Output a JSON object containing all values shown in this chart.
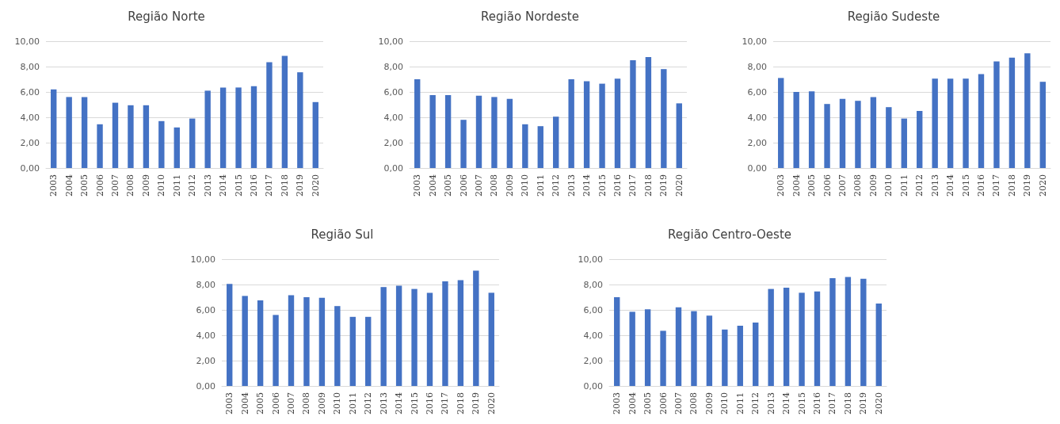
{
  "chart_data": [
    {
      "type": "bar",
      "title": "Região Norte",
      "categories": [
        "2003",
        "2004",
        "2005",
        "2006",
        "2007",
        "2008",
        "2009",
        "2010",
        "2011",
        "2012",
        "2013",
        "2014",
        "2015",
        "2016",
        "2017",
        "2018",
        "2019",
        "2020"
      ],
      "color": "#4472c4",
      "values": [
        6.2,
        5.6,
        5.6,
        3.45,
        5.15,
        4.95,
        4.95,
        3.7,
        3.2,
        3.9,
        6.1,
        6.35,
        6.35,
        6.45,
        8.35,
        8.85,
        7.55,
        5.2
      ],
      "ylim": [
        0,
        10
      ],
      "yticks": [
        {
          "value": 0,
          "label": "0,00"
        },
        {
          "value": 2,
          "label": "2,00"
        },
        {
          "value": 4,
          "label": "4,00"
        },
        {
          "value": 6,
          "label": "6,00"
        },
        {
          "value": 8,
          "label": "8,00"
        },
        {
          "value": 10,
          "label": "10,00"
        }
      ],
      "grid": "y"
    },
    {
      "type": "bar",
      "title": "Região Nordeste",
      "categories": [
        "2003",
        "2004",
        "2005",
        "2006",
        "2007",
        "2008",
        "2009",
        "2010",
        "2011",
        "2012",
        "2013",
        "2014",
        "2015",
        "2016",
        "2017",
        "2018",
        "2019",
        "2020"
      ],
      "color": "#4472c4",
      "values": [
        7.0,
        5.75,
        5.75,
        3.8,
        5.7,
        5.6,
        5.45,
        3.45,
        3.3,
        4.05,
        7.0,
        6.85,
        6.65,
        7.05,
        8.5,
        8.75,
        7.8,
        5.1
      ],
      "ylim": [
        0,
        10
      ],
      "yticks": [
        {
          "value": 0,
          "label": "0,00"
        },
        {
          "value": 2,
          "label": "2,00"
        },
        {
          "value": 4,
          "label": "4,00"
        },
        {
          "value": 6,
          "label": "6,00"
        },
        {
          "value": 8,
          "label": "8,00"
        },
        {
          "value": 10,
          "label": "10,00"
        }
      ],
      "grid": "y"
    },
    {
      "type": "bar",
      "title": "Região Sudeste",
      "categories": [
        "2003",
        "2004",
        "2005",
        "2006",
        "2007",
        "2008",
        "2009",
        "2010",
        "2011",
        "2012",
        "2013",
        "2014",
        "2015",
        "2016",
        "2017",
        "2018",
        "2019",
        "2020"
      ],
      "color": "#4472c4",
      "values": [
        7.1,
        6.0,
        6.05,
        5.05,
        5.45,
        5.3,
        5.6,
        4.8,
        3.9,
        4.5,
        7.05,
        7.05,
        7.05,
        7.4,
        8.4,
        8.7,
        9.05,
        6.8
      ],
      "ylim": [
        0,
        10
      ],
      "yticks": [
        {
          "value": 0,
          "label": "0,00"
        },
        {
          "value": 2,
          "label": "2,00"
        },
        {
          "value": 4,
          "label": "4,00"
        },
        {
          "value": 6,
          "label": "6,00"
        },
        {
          "value": 8,
          "label": "8,00"
        },
        {
          "value": 10,
          "label": "10,00"
        }
      ],
      "grid": "y"
    },
    {
      "type": "bar",
      "title": "Região Sul",
      "categories": [
        "2003",
        "2004",
        "2005",
        "2006",
        "2007",
        "2008",
        "2009",
        "2010",
        "2011",
        "2012",
        "2013",
        "2014",
        "2015",
        "2016",
        "2017",
        "2018",
        "2019",
        "2020"
      ],
      "color": "#4472c4",
      "values": [
        8.05,
        7.1,
        6.75,
        5.6,
        7.15,
        7.0,
        6.95,
        6.3,
        5.45,
        5.45,
        7.8,
        7.9,
        7.65,
        7.35,
        8.25,
        8.35,
        9.1,
        7.35
      ],
      "ylim": [
        0,
        10
      ],
      "yticks": [
        {
          "value": 0,
          "label": "0,00"
        },
        {
          "value": 2,
          "label": "2,00"
        },
        {
          "value": 4,
          "label": "4,00"
        },
        {
          "value": 6,
          "label": "6,00"
        },
        {
          "value": 8,
          "label": "8,00"
        },
        {
          "value": 10,
          "label": "10,00"
        }
      ],
      "grid": "y"
    },
    {
      "type": "bar",
      "title": "Região Centro-Oeste",
      "categories": [
        "2003",
        "2004",
        "2005",
        "2006",
        "2007",
        "2008",
        "2009",
        "2010",
        "2011",
        "2012",
        "2013",
        "2014",
        "2015",
        "2016",
        "2017",
        "2018",
        "2019",
        "2020"
      ],
      "color": "#4472c4",
      "values": [
        7.0,
        5.85,
        6.05,
        4.35,
        6.2,
        5.9,
        5.55,
        4.45,
        4.75,
        5.0,
        7.65,
        7.75,
        7.35,
        7.45,
        8.5,
        8.6,
        8.45,
        6.5
      ],
      "ylim": [
        0,
        10
      ],
      "yticks": [
        {
          "value": 0,
          "label": "0,00"
        },
        {
          "value": 2,
          "label": "2,00"
        },
        {
          "value": 4,
          "label": "4,00"
        },
        {
          "value": 6,
          "label": "6,00"
        },
        {
          "value": 8,
          "label": "8,00"
        },
        {
          "value": 10,
          "label": "10,00"
        }
      ],
      "grid": "y"
    }
  ]
}
